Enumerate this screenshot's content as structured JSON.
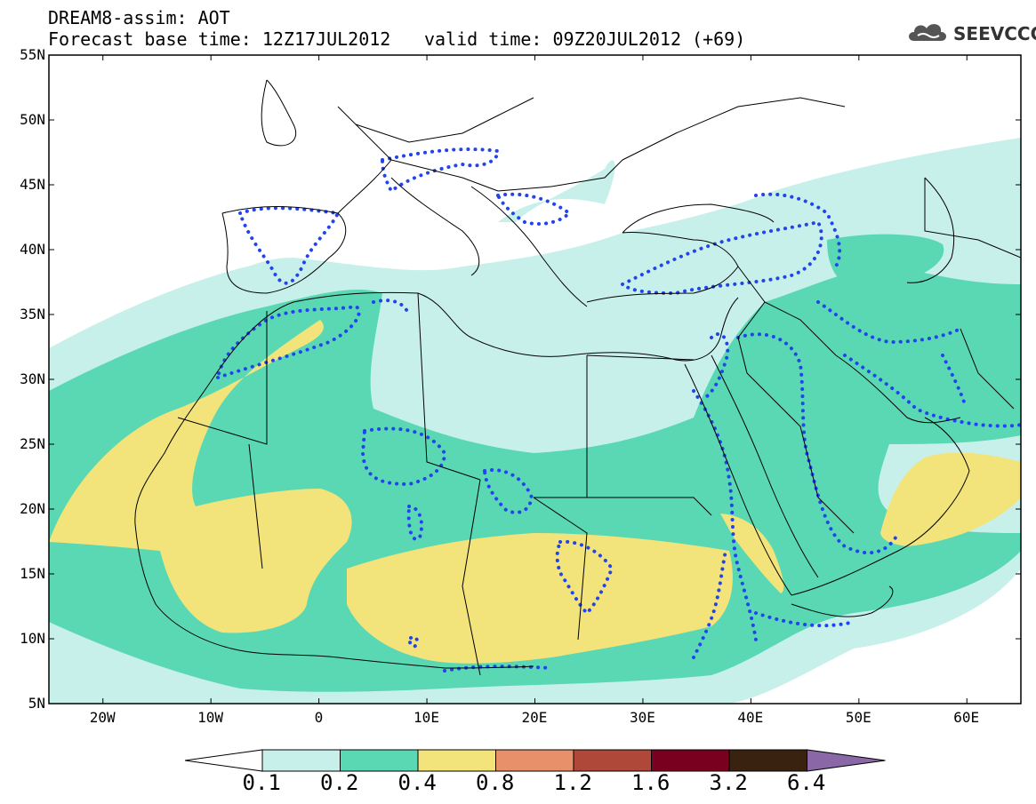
{
  "header": {
    "line1": "DREAM8-assim: AOT",
    "line2": "Forecast base time: 12Z17JUL2012",
    "line3": "valid time: 09Z20JUL2012 (+69)"
  },
  "logo": {
    "icon": "cloud-icon",
    "text": "SEEVCCC"
  },
  "map": {
    "lat_labels": [
      "55N",
      "50N",
      "45N",
      "40N",
      "35N",
      "30N",
      "25N",
      "20N",
      "15N",
      "10N",
      "5N"
    ],
    "lon_labels": [
      "20W",
      "10W",
      "0",
      "10E",
      "20E",
      "30E",
      "40E",
      "50E",
      "60E"
    ],
    "lat_range": [
      5,
      55
    ],
    "lon_range": [
      -25,
      65
    ]
  },
  "colorbar": {
    "labels": [
      "0.1",
      "0.2",
      "0.4",
      "0.8",
      "1.2",
      "1.6",
      "3.2",
      "6.4"
    ],
    "colors": [
      "#c8f0ea",
      "#5ad8b4",
      "#f2e47a",
      "#e8906a",
      "#b0483a",
      "#7a0020",
      "#3a2210",
      "#8a68a8"
    ]
  },
  "colors": {
    "lvl1": "#c8f0ea",
    "lvl2": "#5ad8b4",
    "lvl3": "#f2e47a",
    "dots": "#2244ee"
  }
}
